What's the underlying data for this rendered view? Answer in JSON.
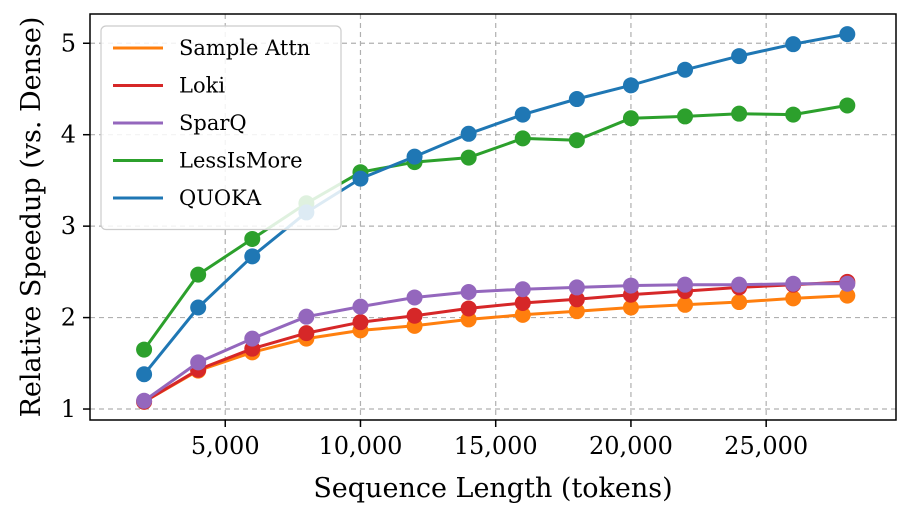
{
  "chart_data": {
    "type": "line",
    "xlabel": "Sequence Length (tokens)",
    "ylabel": "Relative Speedup (vs. Dense)",
    "xlim": [
      0,
      29800
    ],
    "ylim": [
      0.88,
      5.32
    ],
    "xticks": [
      5000,
      10000,
      15000,
      20000,
      25000
    ],
    "xtick_labels": [
      "5,000",
      "10,000",
      "15,000",
      "20,000",
      "25,000"
    ],
    "yticks": [
      1,
      2,
      3,
      4,
      5
    ],
    "ytick_labels": [
      "1",
      "2",
      "3",
      "4",
      "5"
    ],
    "grid": true,
    "legend_position": "top-left",
    "x": [
      2000,
      4000,
      6000,
      8000,
      10000,
      12000,
      14000,
      16000,
      18000,
      20000,
      22000,
      24000,
      26000,
      28000
    ],
    "series": [
      {
        "name": "Sample Attn",
        "color": "#ff7f0e",
        "values": [
          1.08,
          1.42,
          1.62,
          1.77,
          1.86,
          1.91,
          1.98,
          2.03,
          2.07,
          2.11,
          2.14,
          2.17,
          2.21,
          2.24
        ]
      },
      {
        "name": "Loki",
        "color": "#d62728",
        "values": [
          1.08,
          1.43,
          1.66,
          1.83,
          1.95,
          2.02,
          2.1,
          2.16,
          2.2,
          2.25,
          2.29,
          2.33,
          2.36,
          2.39
        ]
      },
      {
        "name": "SparQ",
        "color": "#9467bd",
        "values": [
          1.09,
          1.51,
          1.77,
          2.01,
          2.12,
          2.22,
          2.28,
          2.31,
          2.33,
          2.35,
          2.36,
          2.36,
          2.37,
          2.37
        ]
      },
      {
        "name": "LessIsMore",
        "color": "#2ca02c",
        "values": [
          1.65,
          2.47,
          2.86,
          3.25,
          3.59,
          3.7,
          3.75,
          3.96,
          3.94,
          4.18,
          4.2,
          4.23,
          4.22,
          4.32
        ]
      },
      {
        "name": "QUOKA",
        "color": "#1f77b4",
        "values": [
          1.38,
          2.11,
          2.67,
          3.15,
          3.52,
          3.76,
          4.01,
          4.22,
          4.39,
          4.54,
          4.71,
          4.86,
          4.99,
          5.1
        ]
      }
    ]
  }
}
